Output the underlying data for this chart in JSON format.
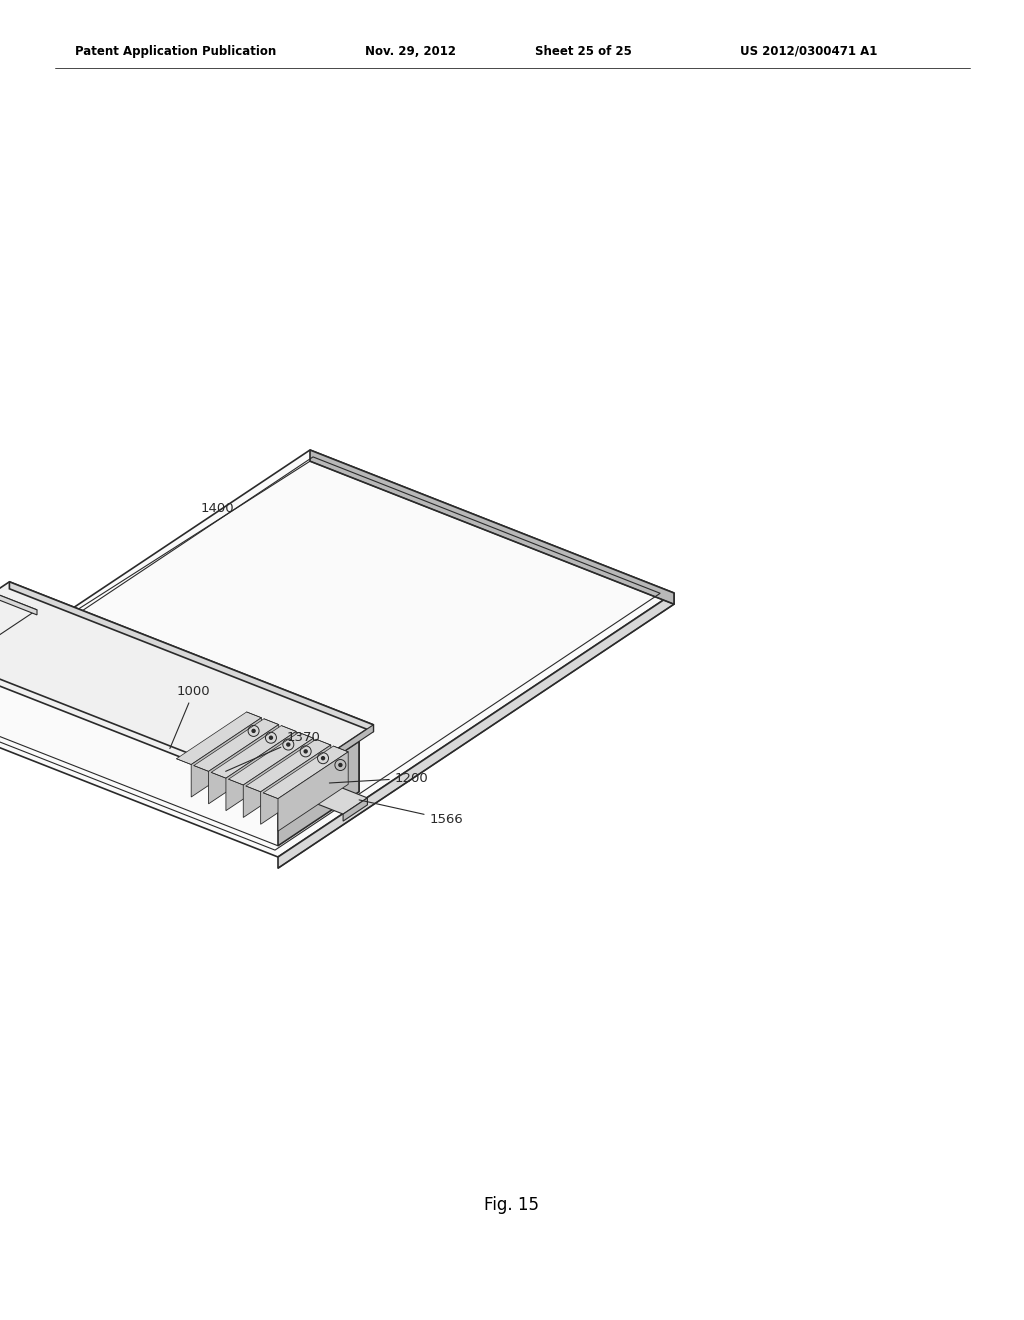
{
  "bg_color": "#ffffff",
  "header_text": "Patent Application Publication",
  "header_date": "Nov. 29, 2012",
  "header_sheet": "Sheet 25 of 25",
  "header_patent": "US 2012/0300471 A1",
  "fig_label": "Fig. 15",
  "line_color": "#2a2a2a",
  "annotation_color": "#2a2a2a",
  "face_light": "#f0f0f0",
  "face_mid": "#d8d8d8",
  "face_dark": "#b8b8b8",
  "face_white": "#fafafa",
  "face_tube": "#c0c0c0",
  "face_tube_dark": "#909090"
}
